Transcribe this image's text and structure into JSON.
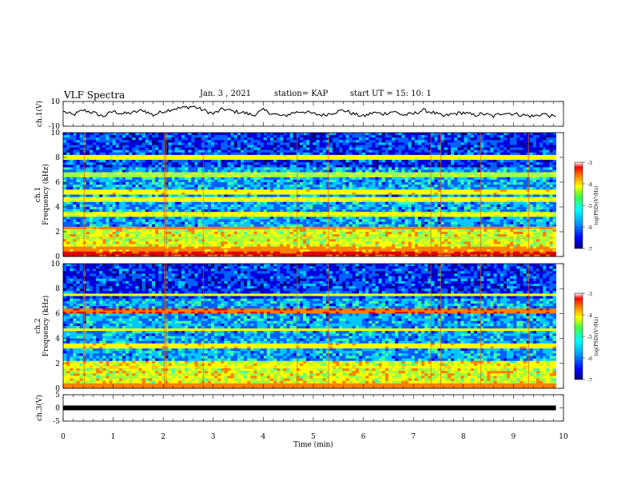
{
  "header": {
    "title": "VLF Spectra",
    "date": "Jan. 3 , 2021",
    "station": "station= KAP",
    "start": "start UT = 15: 10: 1"
  },
  "chart_data": [
    {
      "type": "line",
      "ylabel": "ch.1(V)",
      "ylim": [
        -10,
        10
      ],
      "yticks": [
        "10",
        "-10"
      ],
      "xlim": [
        0,
        9.85
      ],
      "x": [
        0,
        0.2,
        0.4,
        0.6,
        0.8,
        1.0,
        1.2,
        1.4,
        1.6,
        1.8,
        2.0,
        2.2,
        2.4,
        2.6,
        2.8,
        3.0,
        3.2,
        3.4,
        3.6,
        3.8,
        4.0,
        4.2,
        4.4,
        4.6,
        4.8,
        5.0,
        5.2,
        5.4,
        5.6,
        5.8,
        6.0,
        6.2,
        6.4,
        6.6,
        6.8,
        7.0,
        7.2,
        7.4,
        7.6,
        7.8,
        8.0,
        8.2,
        8.4,
        8.6,
        8.8,
        9.0,
        9.2,
        9.4,
        9.6,
        9.85
      ],
      "values": [
        2,
        -1,
        3,
        1,
        -2,
        2,
        0,
        1,
        3,
        -1,
        2,
        4,
        5,
        6,
        3,
        0,
        4,
        2,
        1,
        -1,
        3,
        0,
        -2,
        1,
        2,
        0,
        -1,
        1,
        3,
        0,
        -2,
        1,
        0,
        2,
        -1,
        0,
        3,
        1,
        -2,
        0,
        1,
        -1,
        0,
        -2,
        1,
        0,
        -1,
        -2,
        0,
        -3
      ],
      "color": "#000000"
    },
    {
      "type": "heatmap",
      "ylabel": "ch.1 Frequency (kHz)",
      "ylim": [
        0,
        10
      ],
      "yticks": [
        "0",
        "2",
        "4",
        "6",
        "8",
        "10"
      ],
      "xlim": [
        0,
        9.85
      ],
      "colorbar": {
        "label": "log(PSD)(V²/Hz)",
        "range": [
          -7,
          -3
        ],
        "ticks": [
          "-3",
          "-4",
          "-5",
          "-6",
          "-7"
        ]
      },
      "bands": [
        {
          "f": 0.2,
          "level": -3.4
        },
        {
          "f": 0.6,
          "level": -3.8
        },
        {
          "f": 1.5,
          "level": -4.5
        },
        {
          "f": 2.3,
          "level": -3.8
        },
        {
          "f": 3.4,
          "level": -4.3
        },
        {
          "f": 4.6,
          "level": -4.3
        },
        {
          "f": 5.2,
          "level": -4.0
        },
        {
          "f": 6.6,
          "level": -4.4
        },
        {
          "f": 8.0,
          "level": -4.2
        }
      ],
      "vertical_lines": [
        0.42,
        2.02,
        2.06,
        2.8,
        4.68,
        5.3,
        7.35,
        7.55,
        8.35,
        9.3
      ]
    },
    {
      "type": "heatmap",
      "ylabel": "ch.2 Frequency (kHz)",
      "ylim": [
        0,
        10
      ],
      "yticks": [
        "0",
        "2",
        "4",
        "6",
        "8",
        "10"
      ],
      "xlim": [
        0,
        9.85
      ],
      "colorbar": {
        "label": "log(PSD)(V²/Hz)",
        "range": [
          -7,
          -3
        ],
        "ticks": [
          "-3",
          "-4",
          "-5",
          "-6",
          "-7"
        ]
      },
      "bands": [
        {
          "f": 0.2,
          "level": -3.6
        },
        {
          "f": 1.7,
          "level": -4.2
        },
        {
          "f": 3.4,
          "level": -4.0
        },
        {
          "f": 4.7,
          "level": -4.1
        },
        {
          "f": 6.2,
          "level": -3.5
        },
        {
          "f": 7.5,
          "level": -4.3
        }
      ],
      "vertical_lines": [
        0.42,
        2.02,
        2.06,
        2.8,
        4.68,
        5.3,
        7.35,
        7.55,
        8.35,
        9.3
      ]
    },
    {
      "type": "line",
      "ylabel": "ch.3(V)",
      "ylim": [
        -5,
        5
      ],
      "yticks": [
        "5",
        "0",
        "-5"
      ],
      "xlim": [
        0,
        9.85
      ],
      "x": [
        0,
        9.85
      ],
      "values": [
        0,
        0
      ],
      "color": "#000000"
    }
  ],
  "xaxis": {
    "label": "Time (min)",
    "range": [
      0,
      10
    ],
    "ticks": [
      "0",
      "1",
      "2",
      "3",
      "4",
      "5",
      "6",
      "7",
      "8",
      "9",
      "10"
    ]
  },
  "colormap": [
    "#000080",
    "#0000e0",
    "#0060ff",
    "#00c8ff",
    "#40ffa0",
    "#a0ff40",
    "#ffff00",
    "#ff8000",
    "#e00000",
    "#ffffff"
  ]
}
